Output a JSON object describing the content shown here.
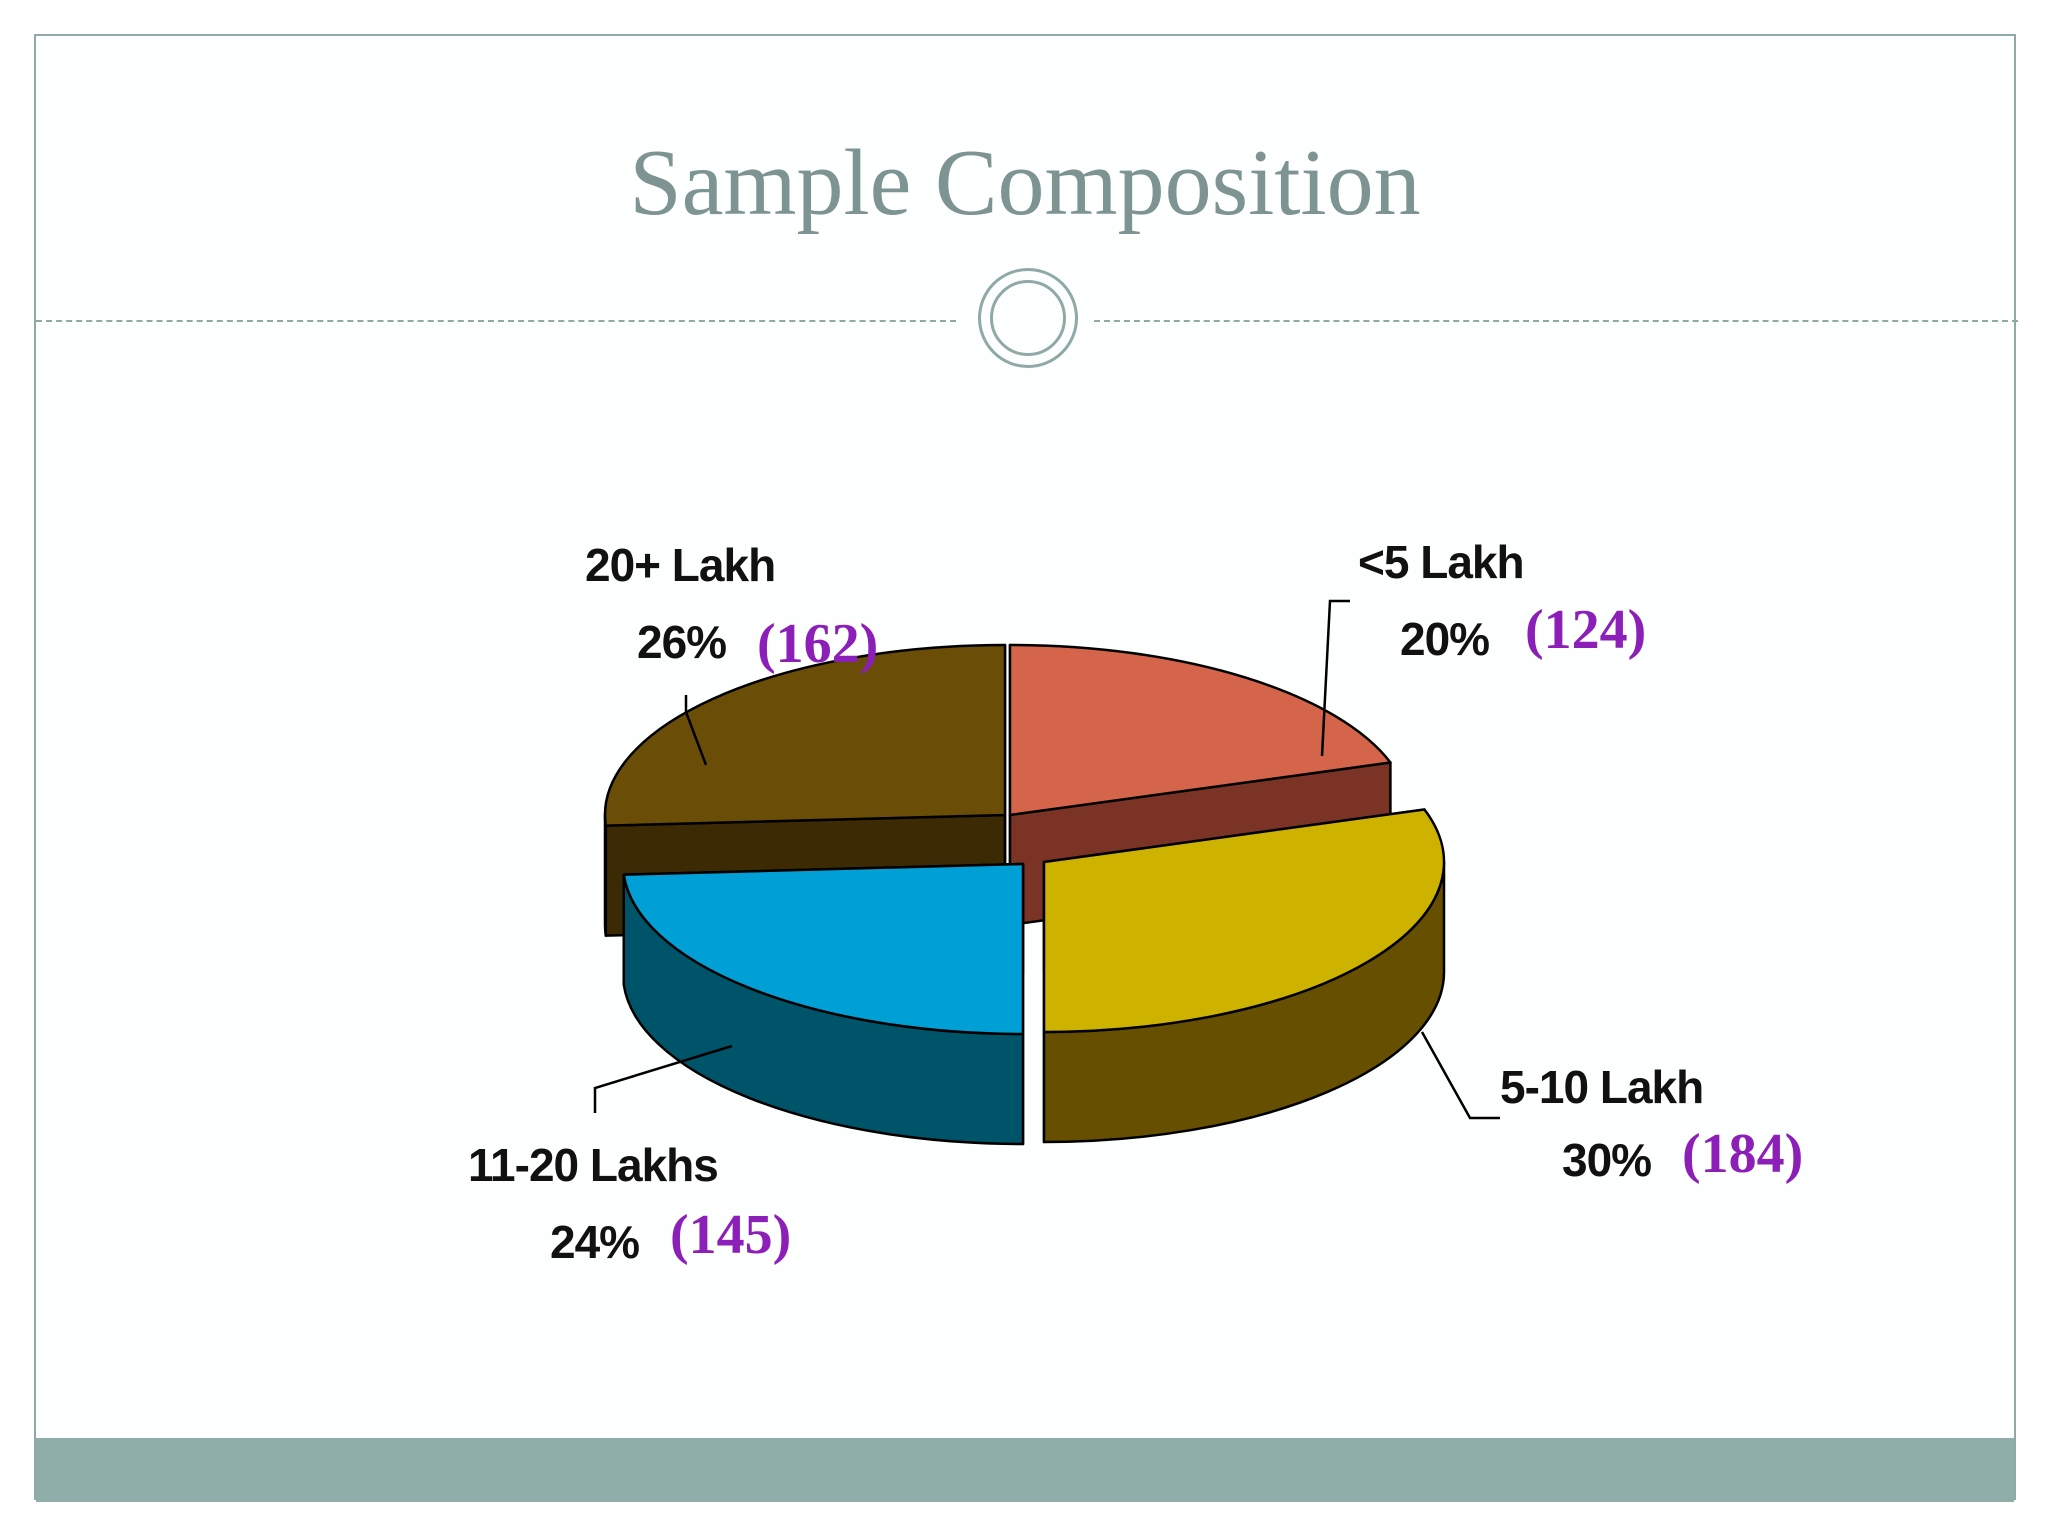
{
  "slide": {
    "title": "Sample Composition"
  },
  "colors": {
    "accent": "#8fa9a7",
    "title": "#7e9492",
    "count_text": "#8b1fb8"
  },
  "chart_data": {
    "type": "pie",
    "style": "3d-exploded",
    "title": "",
    "slices": [
      {
        "label": "<5 Lakh",
        "percent": "20%",
        "value": 20,
        "count": "(124)",
        "top_color": "#d4644a",
        "side_color": "#7a3324"
      },
      {
        "label": "5-10 Lakh",
        "percent": "30%",
        "value": 30,
        "count": "(184)",
        "top_color": "#cdb300",
        "side_color": "#665000"
      },
      {
        "label": "11-20 Lakhs",
        "percent": "24%",
        "value": 24,
        "count": "(145)",
        "top_color": "#00a0d6",
        "side_color": "#00546a"
      },
      {
        "label": "20+ Lakh",
        "percent": "26%",
        "value": 26,
        "count": "(162)",
        "top_color": "#6a4e08",
        "side_color": "#3b2a03"
      }
    ]
  }
}
